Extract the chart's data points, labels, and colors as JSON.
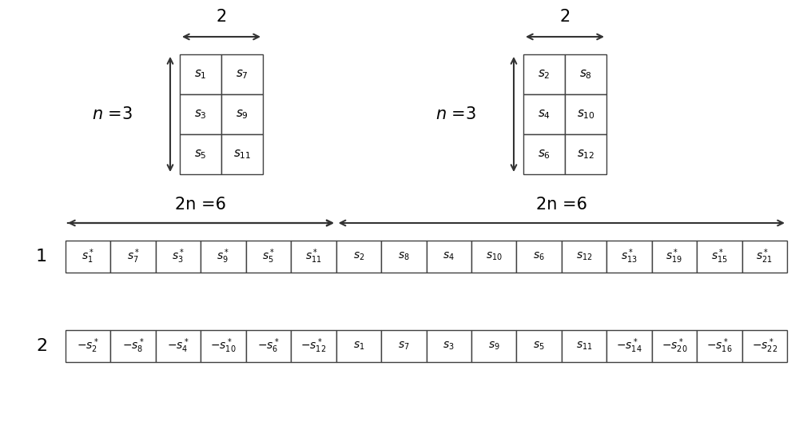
{
  "bg_color": "#ffffff",
  "matrix1_cells": [
    [
      "$s_1$",
      "$s_7$"
    ],
    [
      "$s_3$",
      "$s_9$"
    ],
    [
      "$s_5$",
      "$s_{11}$"
    ]
  ],
  "matrix2_cells": [
    [
      "$s_2$",
      "$s_8$"
    ],
    [
      "$s_4$",
      "$s_{10}$"
    ],
    [
      "$s_6$",
      "$s_{12}$"
    ]
  ],
  "row1_cells": [
    "$s^*_1$",
    "$s^*_7$",
    "$s^*_3$",
    "$s^*_9$",
    "$s^*_5$",
    "$s^*_{11}$",
    "$s_2$",
    "$s_8$",
    "$s_4$",
    "$s_{10}$",
    "$s_6$",
    "$s_{12}$",
    "$s^*_{13}$",
    "$s^*_{19}$",
    "$s^*_{15}$",
    "$s^*_{21}$"
  ],
  "row2_cells": [
    "$-s^*_2$",
    "$-s^*_8$",
    "$-s^*_4$",
    "$-s^*_{10}$",
    "$-s^*_6$",
    "$-s^*_{12}$",
    "$s_1$",
    "$s_7$",
    "$s_3$",
    "$s_9$",
    "$s_5$",
    "$s_{11}$",
    "$-s^*_{14}$",
    "$-s^*_{20}$",
    "$-s^*_{16}$",
    "$-s^*_{22}$"
  ],
  "font_size_cell": 10,
  "font_size_matrix": 11,
  "font_size_label": 16,
  "font_size_arrow": 15,
  "figwidth": 10.0,
  "figheight": 5.43,
  "dpi": 100
}
